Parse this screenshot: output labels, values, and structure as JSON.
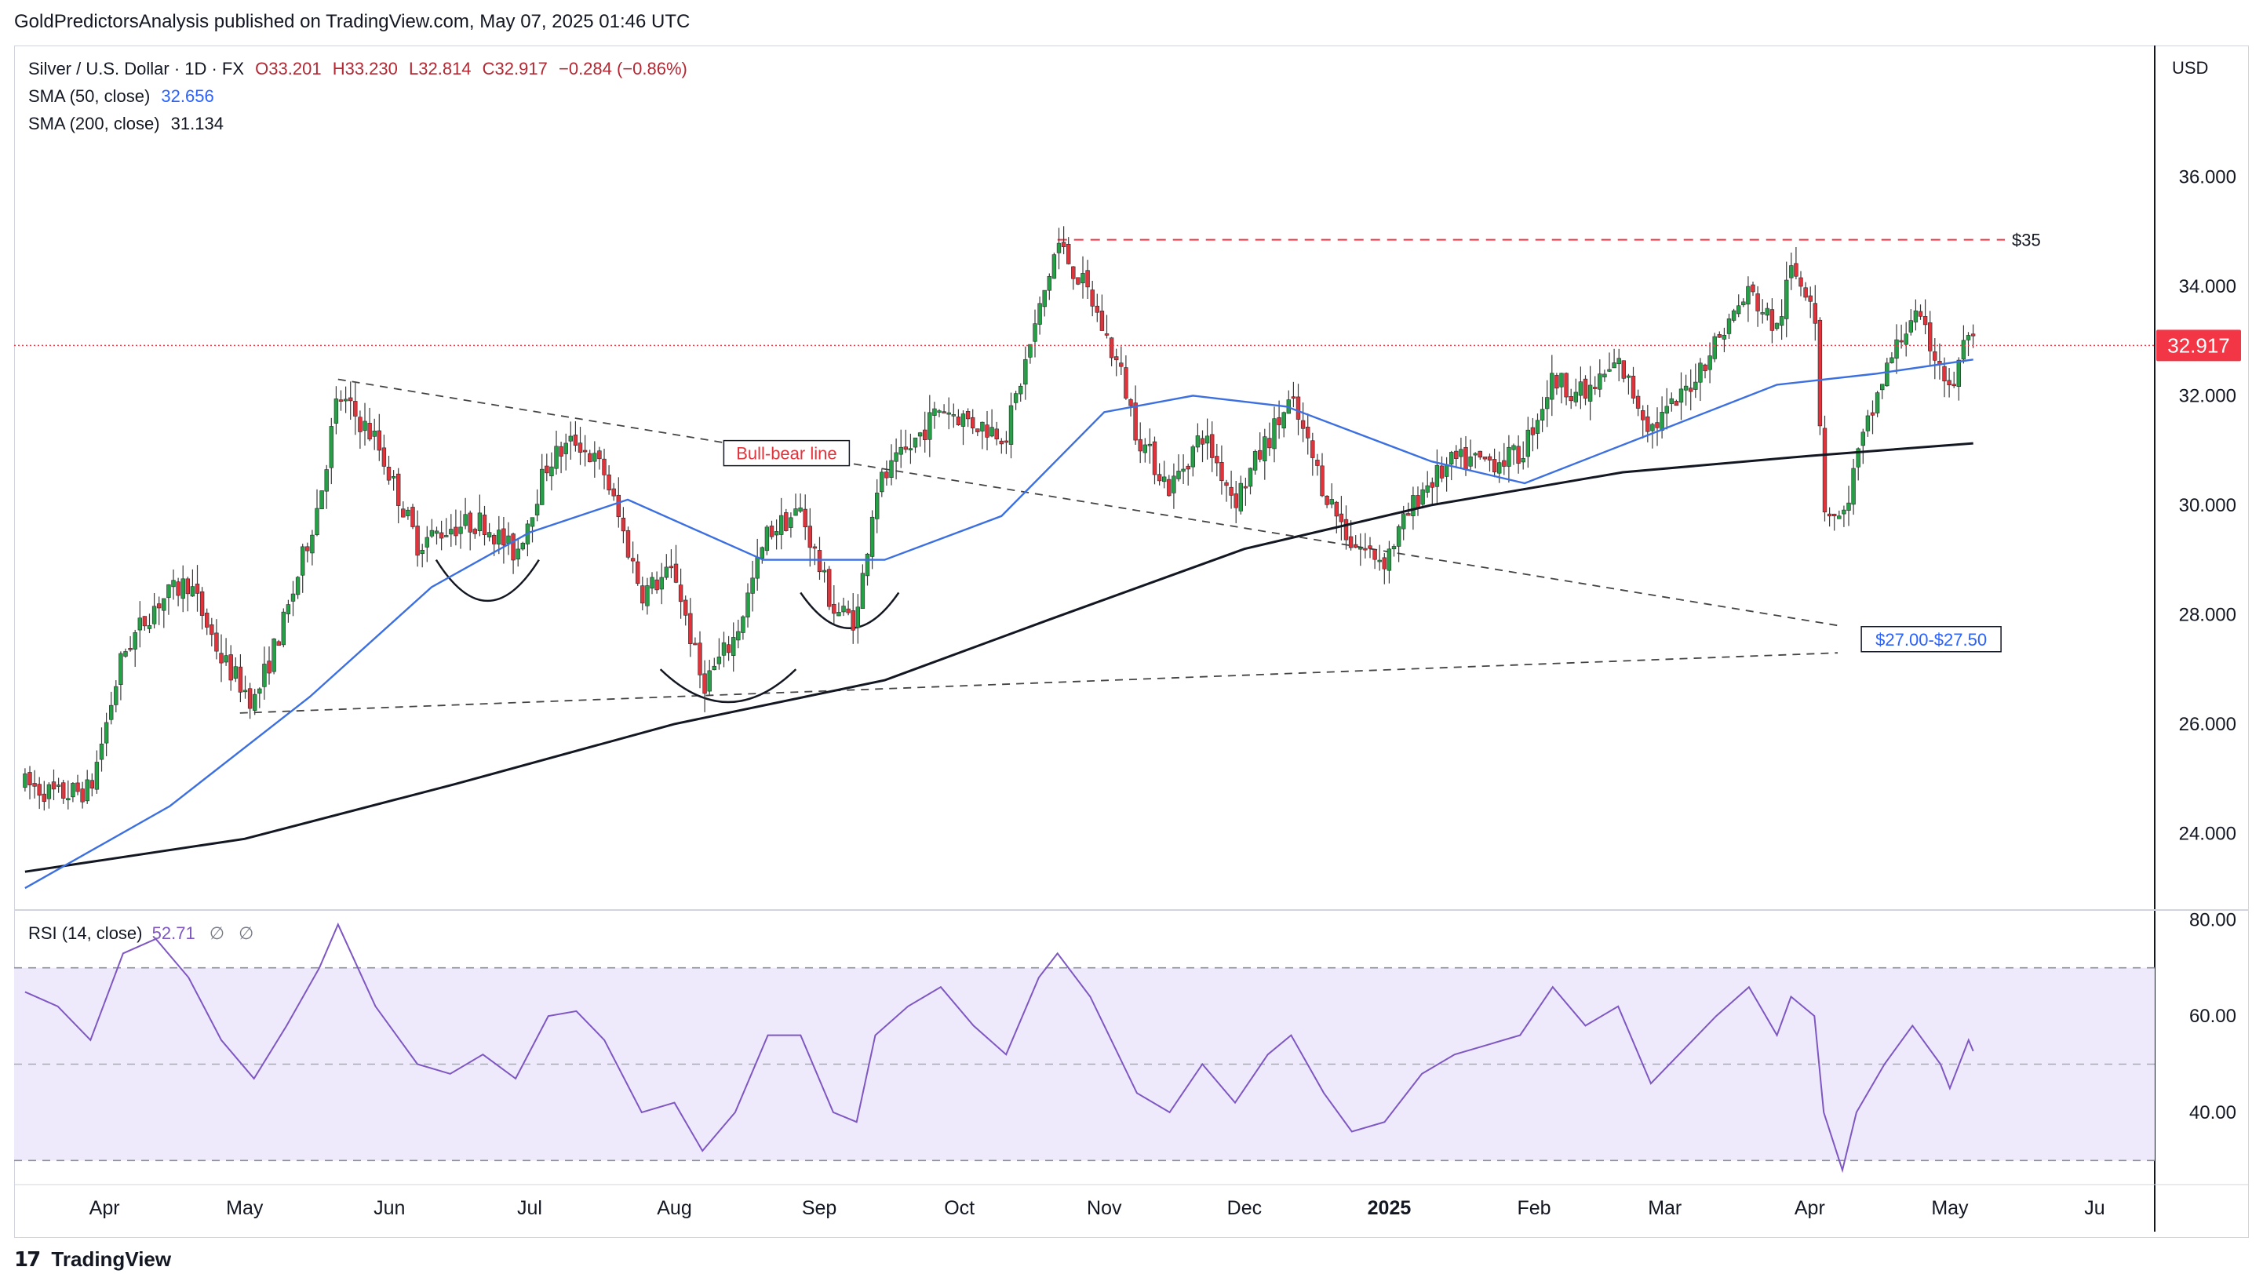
{
  "publish_line": "GoldPredictorsAnalysis published on TradingView.com, May 07, 2025 01:46 UTC",
  "legend": {
    "symbol": "Silver / U.S. Dollar · 1D · FX",
    "open": "O33.201",
    "high": "H33.230",
    "low": "L32.814",
    "close": "C32.917",
    "change": "−0.284 (−0.86%)",
    "sma50_label": "SMA (50, close)",
    "sma50_value": "32.656",
    "sma200_label": "SMA (200, close)",
    "sma200_value": "31.134"
  },
  "rsi_legend": {
    "label": "RSI (14, close)",
    "value": "52.71",
    "extra1": "∅",
    "extra2": "∅"
  },
  "currency": "USD",
  "footer": "TradingView",
  "colors": {
    "up": "#26a047",
    "down": "#e0343d",
    "sma50": "#3c6fe0",
    "sma200": "#131722",
    "rsi": "#7e57c2",
    "rsi_band": "#efeafb",
    "price_line": "#f23645",
    "resistance": "#f23645",
    "support_label": "#2962ff"
  },
  "chart_data": [
    {
      "type": "candlestick",
      "title": "Silver / U.S. Dollar · 1D · FX",
      "ylim": [
        22.6,
        38.4
      ],
      "y_ticks": [
        "24.000",
        "26.000",
        "28.000",
        "30.000",
        "32.000",
        "34.000",
        "36.000"
      ],
      "x_ticks": [
        "Apr",
        "May",
        "Jun",
        "Jul",
        "Aug",
        "Sep",
        "Oct",
        "Nov",
        "Dec",
        "2025",
        "Feb",
        "Mar",
        "Apr",
        "May",
        "Ju"
      ],
      "last_price": "32.917",
      "close_path": [
        [
          "2024-03-15",
          24.9
        ],
        [
          "2024-03-22",
          24.7
        ],
        [
          "2024-03-29",
          24.8
        ],
        [
          "2024-04-05",
          27.3
        ],
        [
          "2024-04-12",
          28.2
        ],
        [
          "2024-04-19",
          28.6
        ],
        [
          "2024-04-26",
          27.2
        ],
        [
          "2024-05-03",
          26.4
        ],
        [
          "2024-05-10",
          28.0
        ],
        [
          "2024-05-17",
          30.1
        ],
        [
          "2024-05-21",
          32.0
        ],
        [
          "2024-05-29",
          31.2
        ],
        [
          "2024-06-07",
          29.3
        ],
        [
          "2024-06-14",
          29.6
        ],
        [
          "2024-06-21",
          29.7
        ],
        [
          "2024-06-28",
          29.1
        ],
        [
          "2024-07-05",
          30.8
        ],
        [
          "2024-07-11",
          31.2
        ],
        [
          "2024-07-17",
          30.6
        ],
        [
          "2024-07-25",
          28.4
        ],
        [
          "2024-08-01",
          28.8
        ],
        [
          "2024-08-07",
          26.7
        ],
        [
          "2024-08-14",
          27.6
        ],
        [
          "2024-08-21",
          29.5
        ],
        [
          "2024-08-28",
          29.9
        ],
        [
          "2024-09-04",
          28.1
        ],
        [
          "2024-09-09",
          27.9
        ],
        [
          "2024-09-13",
          30.3
        ],
        [
          "2024-09-20",
          31.0
        ],
        [
          "2024-09-27",
          31.8
        ],
        [
          "2024-10-04",
          31.5
        ],
        [
          "2024-10-11",
          31.3
        ],
        [
          "2024-10-18",
          33.5
        ],
        [
          "2024-10-22",
          34.8
        ],
        [
          "2024-10-29",
          33.8
        ],
        [
          "2024-11-05",
          32.3
        ],
        [
          "2024-11-08",
          31.3
        ],
        [
          "2024-11-15",
          30.3
        ],
        [
          "2024-11-22",
          31.3
        ],
        [
          "2024-11-29",
          30.1
        ],
        [
          "2024-12-06",
          31.2
        ],
        [
          "2024-12-11",
          31.9
        ],
        [
          "2024-12-18",
          30.3
        ],
        [
          "2024-12-24",
          29.3
        ],
        [
          "2024-12-31",
          29.0
        ],
        [
          "2025-01-08",
          30.3
        ],
        [
          "2025-01-15",
          30.8
        ],
        [
          "2025-01-22",
          30.8
        ],
        [
          "2025-01-29",
          30.9
        ],
        [
          "2025-02-05",
          32.3
        ],
        [
          "2025-02-12",
          32.0
        ],
        [
          "2025-02-19",
          32.6
        ],
        [
          "2025-02-26",
          31.4
        ],
        [
          "2025-03-04",
          31.9
        ],
        [
          "2025-03-12",
          33.0
        ],
        [
          "2025-03-19",
          33.9
        ],
        [
          "2025-03-25",
          33.2
        ],
        [
          "2025-03-28",
          34.3
        ],
        [
          "2025-04-02",
          33.8
        ],
        [
          "2025-04-04",
          30.0
        ],
        [
          "2025-04-08",
          29.7
        ],
        [
          "2025-04-11",
          30.8
        ],
        [
          "2025-04-17",
          32.4
        ],
        [
          "2025-04-23",
          33.5
        ],
        [
          "2025-04-29",
          32.6
        ],
        [
          "2025-05-01",
          32.0
        ],
        [
          "2025-05-05",
          33.2
        ],
        [
          "2025-05-06",
          32.9
        ]
      ],
      "sma50": [
        [
          "2024-03-15",
          23.0
        ],
        [
          "2024-04-15",
          24.5
        ],
        [
          "2024-05-15",
          26.5
        ],
        [
          "2024-06-10",
          28.5
        ],
        [
          "2024-07-01",
          29.5
        ],
        [
          "2024-07-22",
          30.1
        ],
        [
          "2024-08-20",
          29.0
        ],
        [
          "2024-09-15",
          29.0
        ],
        [
          "2024-10-10",
          29.8
        ],
        [
          "2024-11-01",
          31.7
        ],
        [
          "2024-11-20",
          32.0
        ],
        [
          "2024-12-10",
          31.8
        ],
        [
          "2025-01-10",
          30.8
        ],
        [
          "2025-01-30",
          30.4
        ],
        [
          "2025-03-01",
          31.4
        ],
        [
          "2025-03-25",
          32.2
        ],
        [
          "2025-04-15",
          32.4
        ],
        [
          "2025-05-06",
          32.66
        ]
      ],
      "sma200": [
        [
          "2024-03-15",
          23.3
        ],
        [
          "2024-05-01",
          23.9
        ],
        [
          "2024-06-15",
          24.9
        ],
        [
          "2024-08-01",
          26.0
        ],
        [
          "2024-09-15",
          26.8
        ],
        [
          "2024-10-20",
          27.9
        ],
        [
          "2024-12-01",
          29.2
        ],
        [
          "2025-01-10",
          30.0
        ],
        [
          "2025-02-20",
          30.6
        ],
        [
          "2025-04-01",
          30.9
        ],
        [
          "2025-05-06",
          31.13
        ]
      ],
      "annotations": {
        "resistance_label": "$35",
        "resistance_level": 34.85,
        "bull_bear_label": "Bull-bear line",
        "bull_bear_line": [
          [
            "2024-05-21",
            32.3
          ],
          [
            "2025-04-07",
            27.8
          ]
        ],
        "support_line": [
          [
            "2024-04-30",
            26.2
          ],
          [
            "2025-04-07",
            27.3
          ]
        ],
        "support_label": "$27.00-$27.50"
      }
    },
    {
      "type": "line",
      "title": "RSI (14, close)",
      "ylim": [
        25,
        82
      ],
      "y_ticks": [
        "80.00",
        "60.00",
        "40.00"
      ],
      "bands": [
        30,
        50,
        70
      ],
      "last_value": "52.71",
      "series": [
        [
          "2024-03-15",
          65
        ],
        [
          "2024-03-22",
          62
        ],
        [
          "2024-03-29",
          55
        ],
        [
          "2024-04-05",
          73
        ],
        [
          "2024-04-12",
          76
        ],
        [
          "2024-04-19",
          68
        ],
        [
          "2024-04-26",
          55
        ],
        [
          "2024-05-03",
          47
        ],
        [
          "2024-05-10",
          58
        ],
        [
          "2024-05-17",
          70
        ],
        [
          "2024-05-21",
          79
        ],
        [
          "2024-05-29",
          62
        ],
        [
          "2024-06-07",
          50
        ],
        [
          "2024-06-14",
          48
        ],
        [
          "2024-06-21",
          52
        ],
        [
          "2024-06-28",
          47
        ],
        [
          "2024-07-05",
          60
        ],
        [
          "2024-07-11",
          61
        ],
        [
          "2024-07-17",
          55
        ],
        [
          "2024-07-25",
          40
        ],
        [
          "2024-08-01",
          42
        ],
        [
          "2024-08-07",
          32
        ],
        [
          "2024-08-14",
          40
        ],
        [
          "2024-08-21",
          56
        ],
        [
          "2024-08-28",
          56
        ],
        [
          "2024-09-04",
          40
        ],
        [
          "2024-09-09",
          38
        ],
        [
          "2024-09-13",
          56
        ],
        [
          "2024-09-20",
          62
        ],
        [
          "2024-09-27",
          66
        ],
        [
          "2024-10-04",
          58
        ],
        [
          "2024-10-11",
          52
        ],
        [
          "2024-10-18",
          68
        ],
        [
          "2024-10-22",
          73
        ],
        [
          "2024-10-29",
          64
        ],
        [
          "2024-11-05",
          50
        ],
        [
          "2024-11-08",
          44
        ],
        [
          "2024-11-15",
          40
        ],
        [
          "2024-11-22",
          50
        ],
        [
          "2024-11-29",
          42
        ],
        [
          "2024-12-06",
          52
        ],
        [
          "2024-12-11",
          56
        ],
        [
          "2024-12-18",
          44
        ],
        [
          "2024-12-24",
          36
        ],
        [
          "2024-12-31",
          38
        ],
        [
          "2025-01-08",
          48
        ],
        [
          "2025-01-15",
          52
        ],
        [
          "2025-01-22",
          54
        ],
        [
          "2025-01-29",
          56
        ],
        [
          "2025-02-05",
          66
        ],
        [
          "2025-02-12",
          58
        ],
        [
          "2025-02-19",
          62
        ],
        [
          "2025-02-26",
          46
        ],
        [
          "2025-03-04",
          52
        ],
        [
          "2025-03-12",
          60
        ],
        [
          "2025-03-19",
          66
        ],
        [
          "2025-03-25",
          56
        ],
        [
          "2025-03-28",
          64
        ],
        [
          "2025-04-02",
          60
        ],
        [
          "2025-04-04",
          40
        ],
        [
          "2025-04-08",
          28
        ],
        [
          "2025-04-11",
          40
        ],
        [
          "2025-04-17",
          50
        ],
        [
          "2025-04-23",
          58
        ],
        [
          "2025-04-29",
          50
        ],
        [
          "2025-05-01",
          45
        ],
        [
          "2025-05-05",
          55
        ],
        [
          "2025-05-06",
          52.7
        ]
      ]
    }
  ]
}
